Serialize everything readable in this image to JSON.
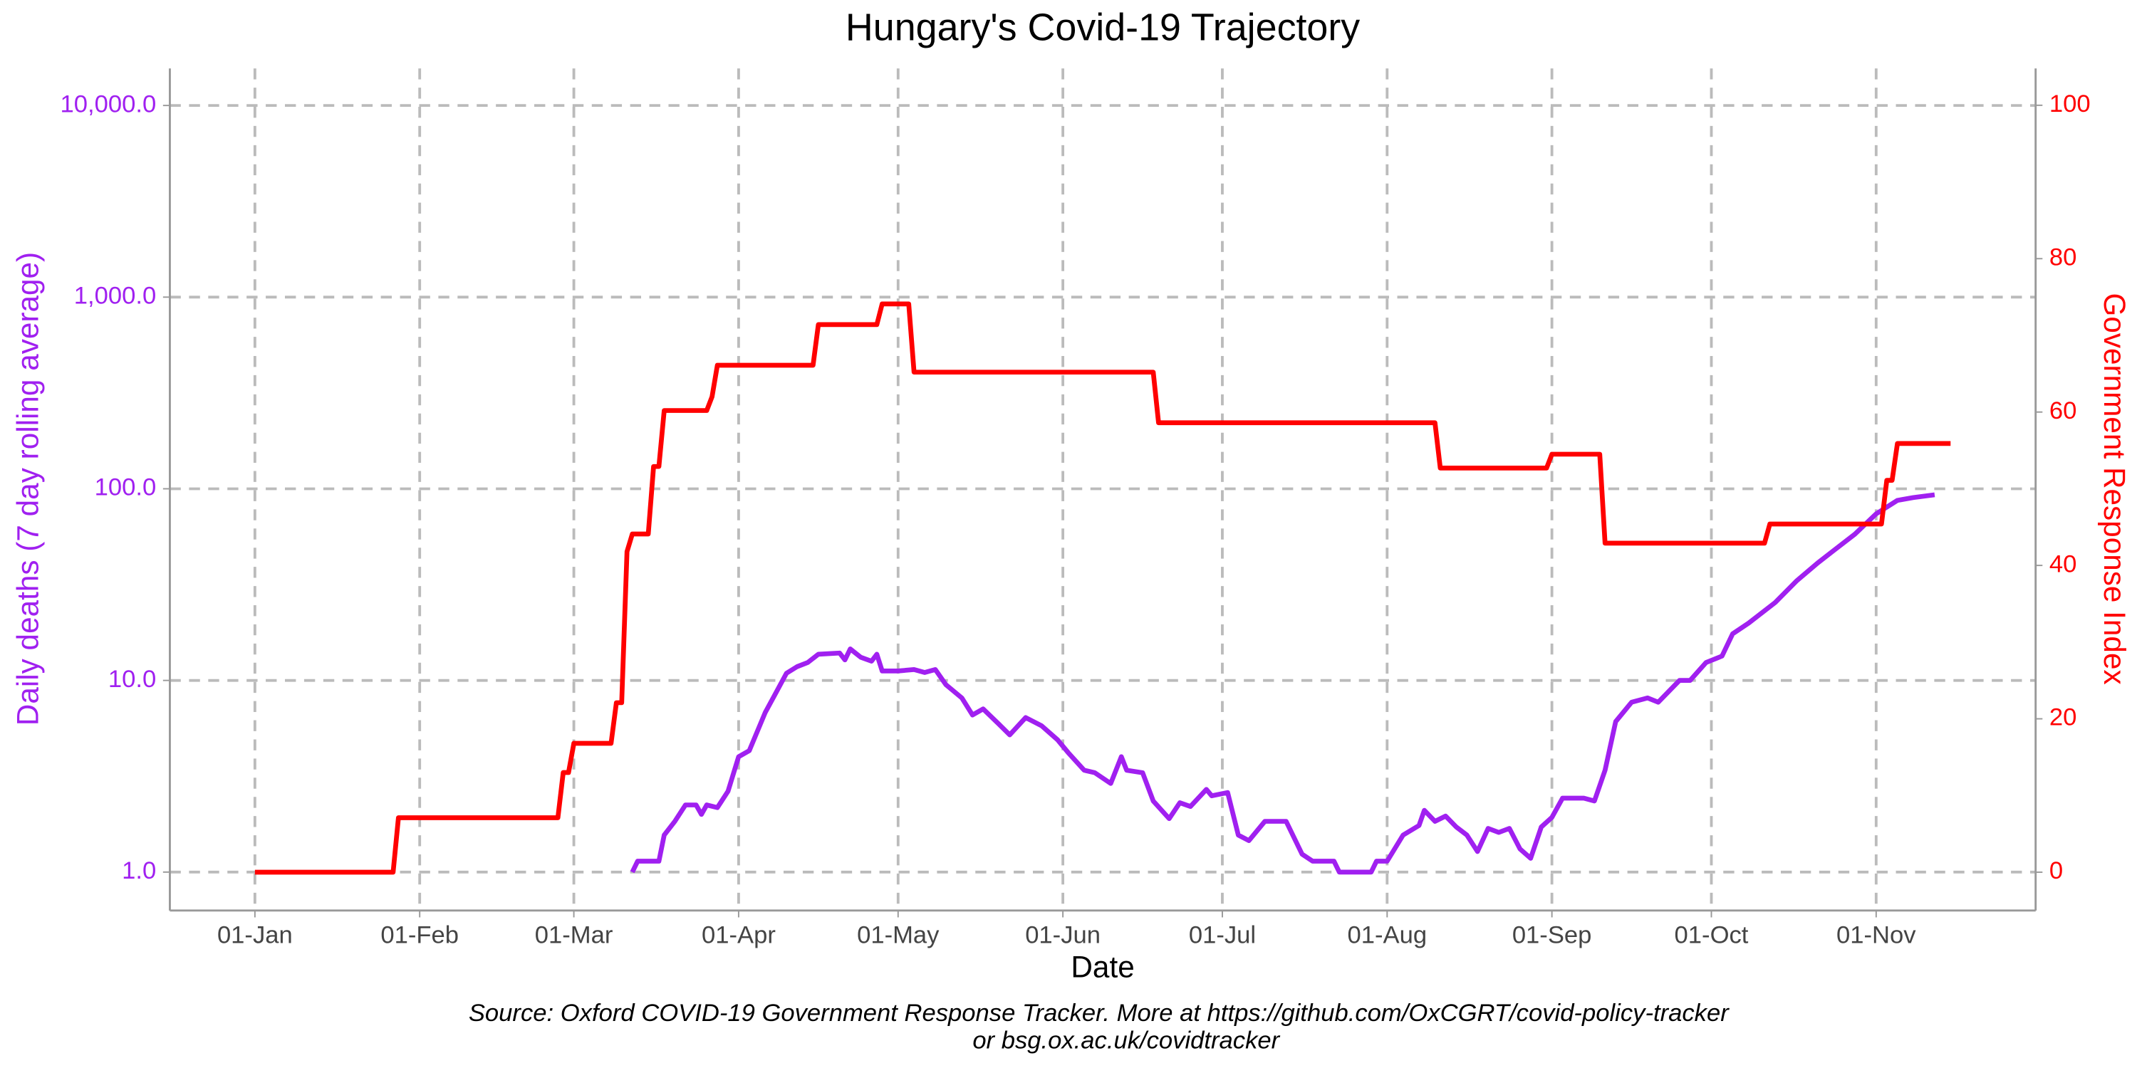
{
  "chart_data": {
    "type": "line",
    "title": "Hungary's Covid-19 Trajectory",
    "xlabel": "Date",
    "ylabel": "Daily deaths (7 day rolling average)",
    "y2label": "Government Response Index",
    "caption": [
      "Source: Oxford COVID-19 Government Response Tracker. More at https://github.com/OxCGRT/covid-policy-tracker",
      "or bsg.ox.ac.uk/covidtracker"
    ],
    "ylog": true,
    "grid": true,
    "xlim": [
      "16-Dec",
      "01-Dec"
    ],
    "xticks": [
      "01-Jan",
      "01-Feb",
      "01-Mar",
      "01-Apr",
      "01-May",
      "01-Jun",
      "01-Jul",
      "01-Aug",
      "01-Sep",
      "01-Oct",
      "01-Nov"
    ],
    "ylim": [
      0.63,
      15600
    ],
    "yticks": [
      {
        "value": 1,
        "label": "1.0"
      },
      {
        "value": 10,
        "label": "10.0"
      },
      {
        "value": 100,
        "label": "100.0"
      },
      {
        "value": 1000,
        "label": "1,000.0"
      },
      {
        "value": 10000,
        "label": "10,000.0"
      }
    ],
    "ycolor": "#a020f0",
    "y2lim": [
      -5,
      104.8
    ],
    "y2ticks": [
      0,
      20,
      40,
      60,
      80,
      100
    ],
    "y2color": "#ff0000",
    "series": [
      {
        "color": "#a020f0",
        "axis": "y",
        "x": [
          "12-Mar",
          "13-Mar",
          "17-Mar",
          "18-Mar",
          "20-Mar",
          "22-Mar",
          "24-Mar",
          "25-Mar",
          "26-Mar",
          "28-Mar",
          "30-Mar",
          "01-Apr",
          "03-Apr",
          "06-Apr",
          "08-Apr",
          "10-Apr",
          "12-Apr",
          "14-Apr",
          "16-Apr",
          "20-Apr",
          "21-Apr",
          "22-Apr",
          "24-Apr",
          "26-Apr",
          "27-Apr",
          "28-Apr",
          "01-May",
          "04-May",
          "06-May",
          "08-May",
          "10-May",
          "13-May",
          "15-May",
          "17-May",
          "20-May",
          "22-May",
          "25-May",
          "28-May",
          "31-May",
          "02-Jun",
          "05-Jun",
          "07-Jun",
          "10-Jun",
          "12-Jun",
          "13-Jun",
          "16-Jun",
          "18-Jun",
          "21-Jun",
          "23-Jun",
          "25-Jun",
          "28-Jun",
          "29-Jun",
          "02-Jul",
          "04-Jul",
          "06-Jul",
          "09-Jul",
          "13-Jul",
          "16-Jul",
          "18-Jul",
          "22-Jul",
          "23-Jul",
          "29-Jul",
          "30-Jul",
          "01-Aug",
          "04-Aug",
          "07-Aug",
          "08-Aug",
          "10-Aug",
          "12-Aug",
          "14-Aug",
          "16-Aug",
          "18-Aug",
          "20-Aug",
          "22-Aug",
          "24-Aug",
          "26-Aug",
          "28-Aug",
          "30-Aug",
          "01-Sep",
          "03-Sep",
          "07-Sep",
          "09-Sep",
          "11-Sep",
          "13-Sep",
          "16-Sep",
          "19-Sep",
          "21-Sep",
          "25-Sep",
          "27-Sep",
          "30-Sep",
          "03-Oct",
          "05-Oct",
          "08-Oct",
          "13-Oct",
          "17-Oct",
          "21-Oct",
          "24-Oct",
          "28-Oct",
          "01-Nov",
          "05-Nov",
          "08-Nov",
          "12-Nov"
        ],
        "values": [
          1,
          1.14,
          1.14,
          1.56,
          1.84,
          2.24,
          2.24,
          2.0,
          2.24,
          2.17,
          2.64,
          4.0,
          4.3,
          6.8,
          8.6,
          10.9,
          11.8,
          12.4,
          13.7,
          13.9,
          12.8,
          14.6,
          13.2,
          12.6,
          13.7,
          11.2,
          11.2,
          11.4,
          11.0,
          11.4,
          9.5,
          8.1,
          6.6,
          7.1,
          5.9,
          5.2,
          6.4,
          5.8,
          4.9,
          4.2,
          3.4,
          3.3,
          2.9,
          4.0,
          3.4,
          3.3,
          2.35,
          1.9,
          2.3,
          2.2,
          2.7,
          2.5,
          2.6,
          1.56,
          1.46,
          1.84,
          1.84,
          1.24,
          1.14,
          1.14,
          1.0,
          1.0,
          1.14,
          1.14,
          1.56,
          1.75,
          2.1,
          1.84,
          1.96,
          1.72,
          1.56,
          1.28,
          1.69,
          1.61,
          1.69,
          1.32,
          1.18,
          1.72,
          1.93,
          2.43,
          2.43,
          2.35,
          3.4,
          6.1,
          7.7,
          8.1,
          7.7,
          10,
          10,
          12.4,
          13.4,
          17.5,
          19.9,
          25.5,
          33,
          41,
          47.6,
          58,
          74,
          87,
          90,
          93
        ]
      },
      {
        "color": "#ff0000",
        "axis": "y2",
        "x": [
          "01-Jan",
          "27-Jan",
          "28-Jan",
          "27-Feb",
          "28-Feb",
          "29-Feb",
          "01-Mar",
          "08-Mar",
          "09-Mar",
          "10-Mar",
          "11-Mar",
          "12-Mar",
          "15-Mar",
          "16-Mar",
          "17-Mar",
          "18-Mar",
          "26-Mar",
          "27-Mar",
          "28-Mar",
          "15-Apr",
          "16-Apr",
          "27-Apr",
          "28-Apr",
          "03-May",
          "04-May",
          "18-Jun",
          "19-Jun",
          "10-Aug",
          "11-Aug",
          "31-Aug",
          "01-Sep",
          "10-Sep",
          "11-Sep",
          "11-Oct",
          "12-Oct",
          "02-Nov",
          "03-Nov",
          "04-Nov",
          "05-Nov",
          "15-Nov"
        ],
        "values": [
          0,
          0,
          7.1,
          7.1,
          13,
          13,
          16.8,
          16.8,
          22.1,
          22.1,
          41.8,
          44.1,
          44.1,
          52.9,
          52.9,
          60.2,
          60.2,
          62,
          66.1,
          66.1,
          71.4,
          71.4,
          74.1,
          74.1,
          65.2,
          65.2,
          58.6,
          58.6,
          52.7,
          52.7,
          54.5,
          54.5,
          42.9,
          42.9,
          45.4,
          45.4,
          51.1,
          51.1,
          55.9,
          55.9
        ]
      }
    ]
  }
}
